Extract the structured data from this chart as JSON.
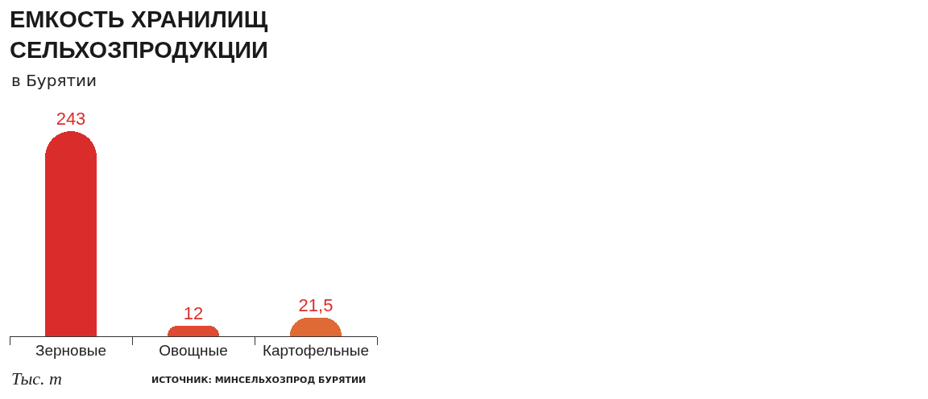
{
  "chart_data": {
    "type": "bar",
    "title": "ЕМКОСТЬ ХРАНИЛИЩ\nСЕЛЬХОЗПРОДУКЦИИ",
    "subtitle": "в Бурятии",
    "categories": [
      "Зерновые",
      "Овощные",
      "Картофельные"
    ],
    "values": [
      243,
      12,
      21.5
    ],
    "colors": [
      "#da2d2b",
      "#de4b32",
      "#df6a35"
    ],
    "value_labels": [
      "243",
      "12",
      "21,5"
    ],
    "annotations": [
      "Тыс. т",
      "ИСТОЧНИК: МИНСЕЛЬХОЗПРОД БУРЯТИИ"
    ],
    "legend": false
  }
}
